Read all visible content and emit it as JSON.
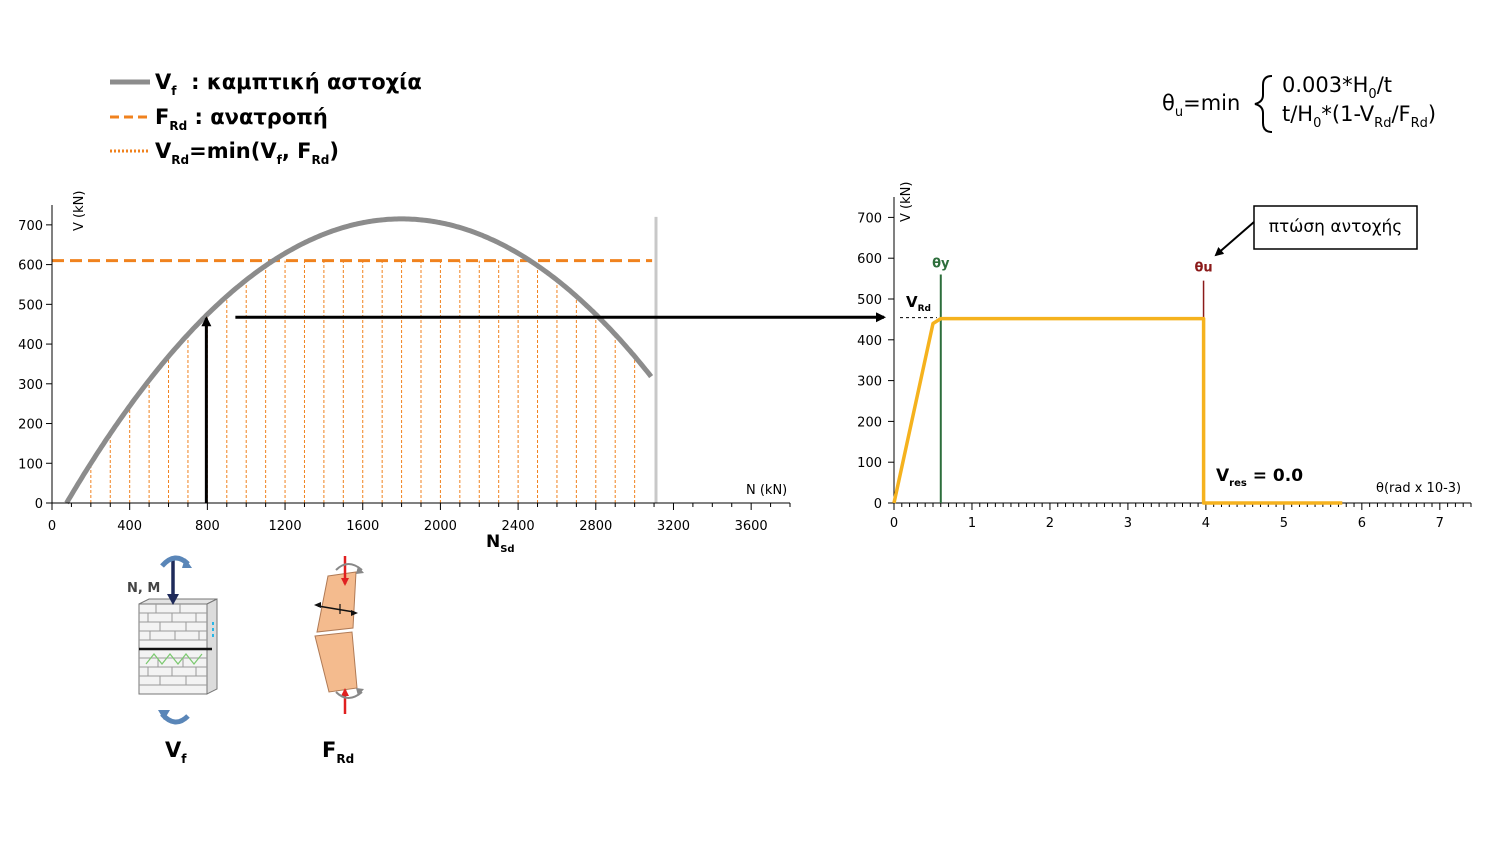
{
  "legend": {
    "items": [
      {
        "symbol": "V",
        "sub": "f",
        "text": "  : καμπτική αστοχία",
        "style": "solid",
        "color": "#8c8c8c"
      },
      {
        "symbol": "F",
        "sub": "Rd",
        "text": " : ανατροπή",
        "style": "dashed",
        "color": "#f0821e"
      },
      {
        "symbol": "V",
        "sub": "Rd",
        "text": "=min(V",
        "sub2": "f",
        "text2": ", F",
        "sub3": "Rd",
        "text3": ")",
        "style": "dotted",
        "color": "#f0821e"
      }
    ]
  },
  "formula": {
    "lhs": "θ",
    "lhs_sub": "u",
    "eq": "=min",
    "line1": [
      "0.003*H",
      "0",
      "/t"
    ],
    "line2": [
      "t/H",
      "0",
      "*(1-V",
      "Rd",
      "/F",
      "Rd",
      ")"
    ]
  },
  "chart_data": [
    {
      "type": "line",
      "ylabel": "V (kN)",
      "xlabel": "N (kN)",
      "xlabel_main": "N",
      "xlabel_sub": "Sd",
      "xlim": [
        0,
        3800
      ],
      "ylim": [
        0,
        750
      ],
      "xticks": [
        0,
        400,
        800,
        1200,
        1600,
        2000,
        2400,
        2800,
        3200,
        3600
      ],
      "yticks": [
        0,
        100,
        200,
        300,
        400,
        500,
        600,
        700
      ],
      "series": [
        {
          "type": "curve",
          "peak_x": 1800,
          "peak_y": 715,
          "x_start": 75,
          "x_end": 3090,
          "color": "#8c8c8c"
        },
        {
          "type": "hline",
          "y": 610,
          "x_start": 0,
          "x_end": 3090,
          "color": "#f0821e"
        },
        {
          "type": "vlines",
          "x_start": 200,
          "x_end": 3050,
          "step": 100,
          "cap_y": 610,
          "color": "#f0821e"
        }
      ],
      "limit_line_x": 3110,
      "example_point": {
        "x": 800,
        "y": 470
      }
    },
    {
      "type": "line",
      "ylabel": "V (kN)",
      "xlabel": "θ(rad x 10-3)",
      "xlim": [
        0,
        7.4
      ],
      "ylim": [
        0,
        750
      ],
      "xticks": [
        0,
        1,
        2,
        3,
        4,
        5,
        6,
        7
      ],
      "yticks": [
        0,
        100,
        200,
        300,
        400,
        500,
        600,
        700
      ],
      "series": [
        {
          "name": "",
          "x": [
            0,
            0.5,
            0.6,
            3.97,
            3.97,
            5.75
          ],
          "y": [
            0,
            440,
            452,
            452,
            0,
            0
          ],
          "color": "#f5b21e"
        }
      ],
      "markers": [
        {
          "label": "θy",
          "x": 0.6,
          "color": "#2d6e3c"
        },
        {
          "label": "θu",
          "x": 3.97,
          "color": "#8b1a1a"
        }
      ],
      "vrd_level": 452,
      "vrd_main": "V",
      "vrd_sub": "Rd",
      "annotation": "πτώση αντοχής",
      "vres_main": "V",
      "vres_sub": "res",
      "vres_value": " = 0.0"
    }
  ],
  "mechanisms": [
    {
      "main": "V",
      "sub": "f",
      "load_label": "N, M"
    },
    {
      "main": "F",
      "sub": "Rd"
    }
  ]
}
